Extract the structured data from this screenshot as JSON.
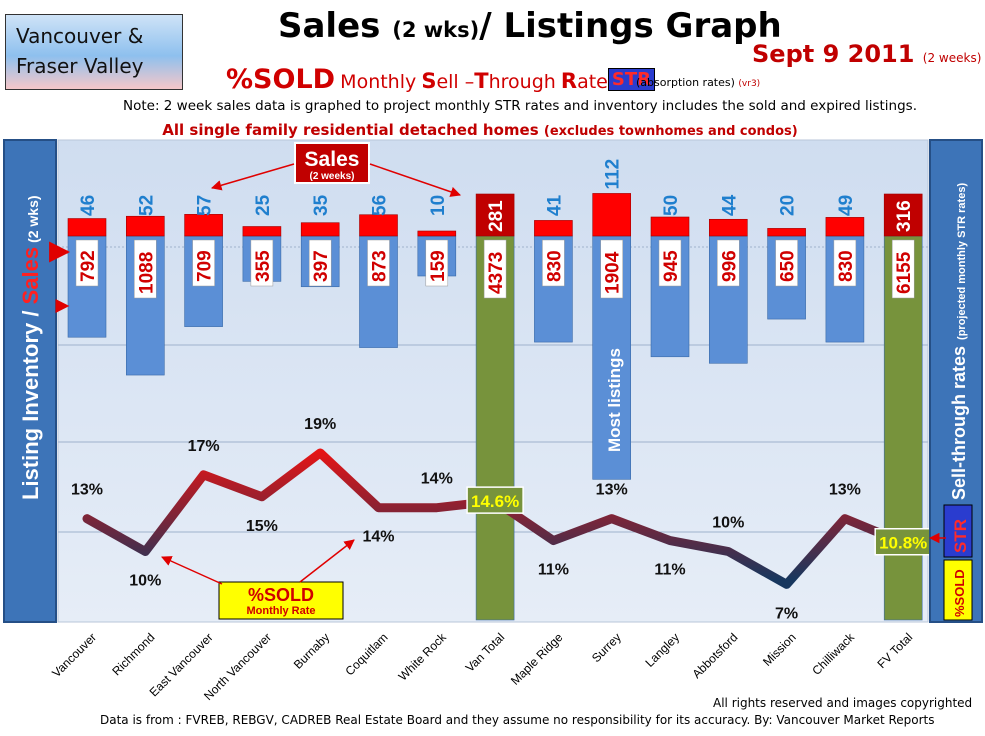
{
  "region": {
    "line1": "Vancouver &",
    "line2": "Fraser Valley"
  },
  "title": {
    "main": "Sales",
    "wks": "(2 wks)",
    "rest": "/ Listings Graph"
  },
  "date": {
    "main": "Sept 9 2011",
    "sub": "(2 weeks)"
  },
  "str_title": {
    "pct_sold": "%SOLD",
    "monthly": "Monthly",
    "s": "S",
    "ell": "ell –",
    "t": "T",
    "hrough": "hrough",
    "r": "R",
    "ate": "ate",
    "badge": "STR"
  },
  "absorption": {
    "text": "(absorption rates)",
    "version": "(vr3)"
  },
  "note": "Note: 2 week sales data is graphed to project monthly STR rates and inventory includes the sold and expired listings.",
  "subnote": {
    "main": "All single family residential detached homes",
    "small": "(excludes townhomes and condos)"
  },
  "left_label": {
    "listing": "Listing Inventory / ",
    "sales": "Sales",
    "wks": "(2 wks)"
  },
  "right_label": {
    "main": "Sell-through rates",
    "small": "(projected monthly STR rates)"
  },
  "right_badges": {
    "str": "STR",
    "pct": "%SOLD"
  },
  "sales_callout": {
    "main": "Sales",
    "sub": "(2 weeks)"
  },
  "sold_callout": {
    "main": "%SOLD",
    "sub": "Monthly Rate"
  },
  "most_listings": "Most listings",
  "footer": {
    "rights": "All rights reserved and  images copyrighted",
    "source": "Data is from : FVREB, REBGV, CADREB Real Estate Board and they assume no responsibility for its accuracy. By: Vancouver Market Reports"
  },
  "colors": {
    "plot_bg_top": "#cfddf0",
    "plot_bg_bottom": "#e6edf7",
    "listing_bar": "#5b8fd6",
    "total_bar": "#77933c",
    "sales_bar": "#ff0000",
    "total_sales_bar": "#c00000",
    "sales_label": "#1f7fce",
    "side_panel": "#3d74b8",
    "str_high": "#e81414",
    "str_low": "#17375e"
  },
  "chart_data": {
    "type": "bar",
    "categories": [
      "Vancouver",
      "Richmond",
      "East Vancouver",
      "North Vancouver",
      "Burnaby",
      "Coquitlam",
      "White Rock",
      "Van Total",
      "Maple Ridge",
      "Surrey",
      "Langley",
      "Abbotsford",
      "Mission",
      "Chilliwack",
      "FV Total"
    ],
    "series": [
      {
        "name": "Sales",
        "values": [
          46,
          52,
          57,
          25,
          35,
          56,
          10,
          281,
          41,
          112,
          50,
          44,
          20,
          49,
          316
        ]
      },
      {
        "name": "Listing Inventory",
        "values": [
          792,
          1088,
          709,
          355,
          397,
          873,
          159,
          4373,
          830,
          1904,
          945,
          996,
          650,
          830,
          6155
        ]
      },
      {
        "name": "%SOLD",
        "values": [
          13,
          10,
          17,
          15,
          19,
          14,
          14,
          14.6,
          11,
          13,
          11,
          10,
          7,
          13,
          10.8
        ]
      }
    ],
    "str_labels": [
      "13%",
      "10%",
      "17%",
      "15%",
      "19%",
      "14%",
      "14%",
      "14.6%",
      "11%",
      "13%",
      "11%",
      "10%",
      "7%",
      "13%",
      "10.8%"
    ],
    "grid": true,
    "legend": "none"
  }
}
